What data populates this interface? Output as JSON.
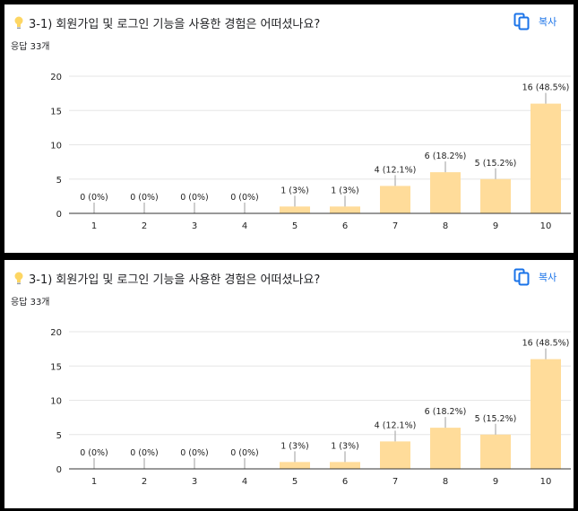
{
  "cards": [
    {
      "title": "3-1) 회원가입 및 로그인 기능을 사용한 경험은 어떠셨나요?",
      "copy_label": "복사",
      "response_count": "응답 33개",
      "chart_data": {
        "type": "bar",
        "categories": [
          "1",
          "2",
          "3",
          "4",
          "5",
          "6",
          "7",
          "8",
          "9",
          "10"
        ],
        "values": [
          0,
          0,
          0,
          0,
          1,
          1,
          4,
          6,
          5,
          16
        ],
        "data_labels": [
          "0 (0%)",
          "0 (0%)",
          "0 (0%)",
          "0 (0%)",
          "1 (3%)",
          "1 (3%)",
          "4 (12.1%)",
          "6 (18.2%)",
          "5 (15.2%)",
          "16 (48.5%)"
        ],
        "ylim": [
          0,
          20
        ],
        "yticks": [
          0,
          5,
          10,
          15,
          20
        ],
        "grid": true,
        "bar_color": "#ffdc9a",
        "xlabel": "",
        "ylabel": ""
      }
    },
    {
      "title": "3-1) 회원가입 및 로그인 기능을 사용한 경험은 어떠셨나요?",
      "copy_label": "복사",
      "response_count": "응답 33개",
      "chart_data": {
        "type": "bar",
        "categories": [
          "1",
          "2",
          "3",
          "4",
          "5",
          "6",
          "7",
          "8",
          "9",
          "10"
        ],
        "values": [
          0,
          0,
          0,
          0,
          1,
          1,
          4,
          6,
          5,
          16
        ],
        "data_labels": [
          "0 (0%)",
          "0 (0%)",
          "0 (0%)",
          "0 (0%)",
          "1 (3%)",
          "1 (3%)",
          "4 (12.1%)",
          "6 (18.2%)",
          "5 (15.2%)",
          "16 (48.5%)"
        ],
        "ylim": [
          0,
          20
        ],
        "yticks": [
          0,
          5,
          10,
          15,
          20
        ],
        "grid": true,
        "bar_color": "#ffdc9a",
        "xlabel": "",
        "ylabel": ""
      }
    }
  ]
}
